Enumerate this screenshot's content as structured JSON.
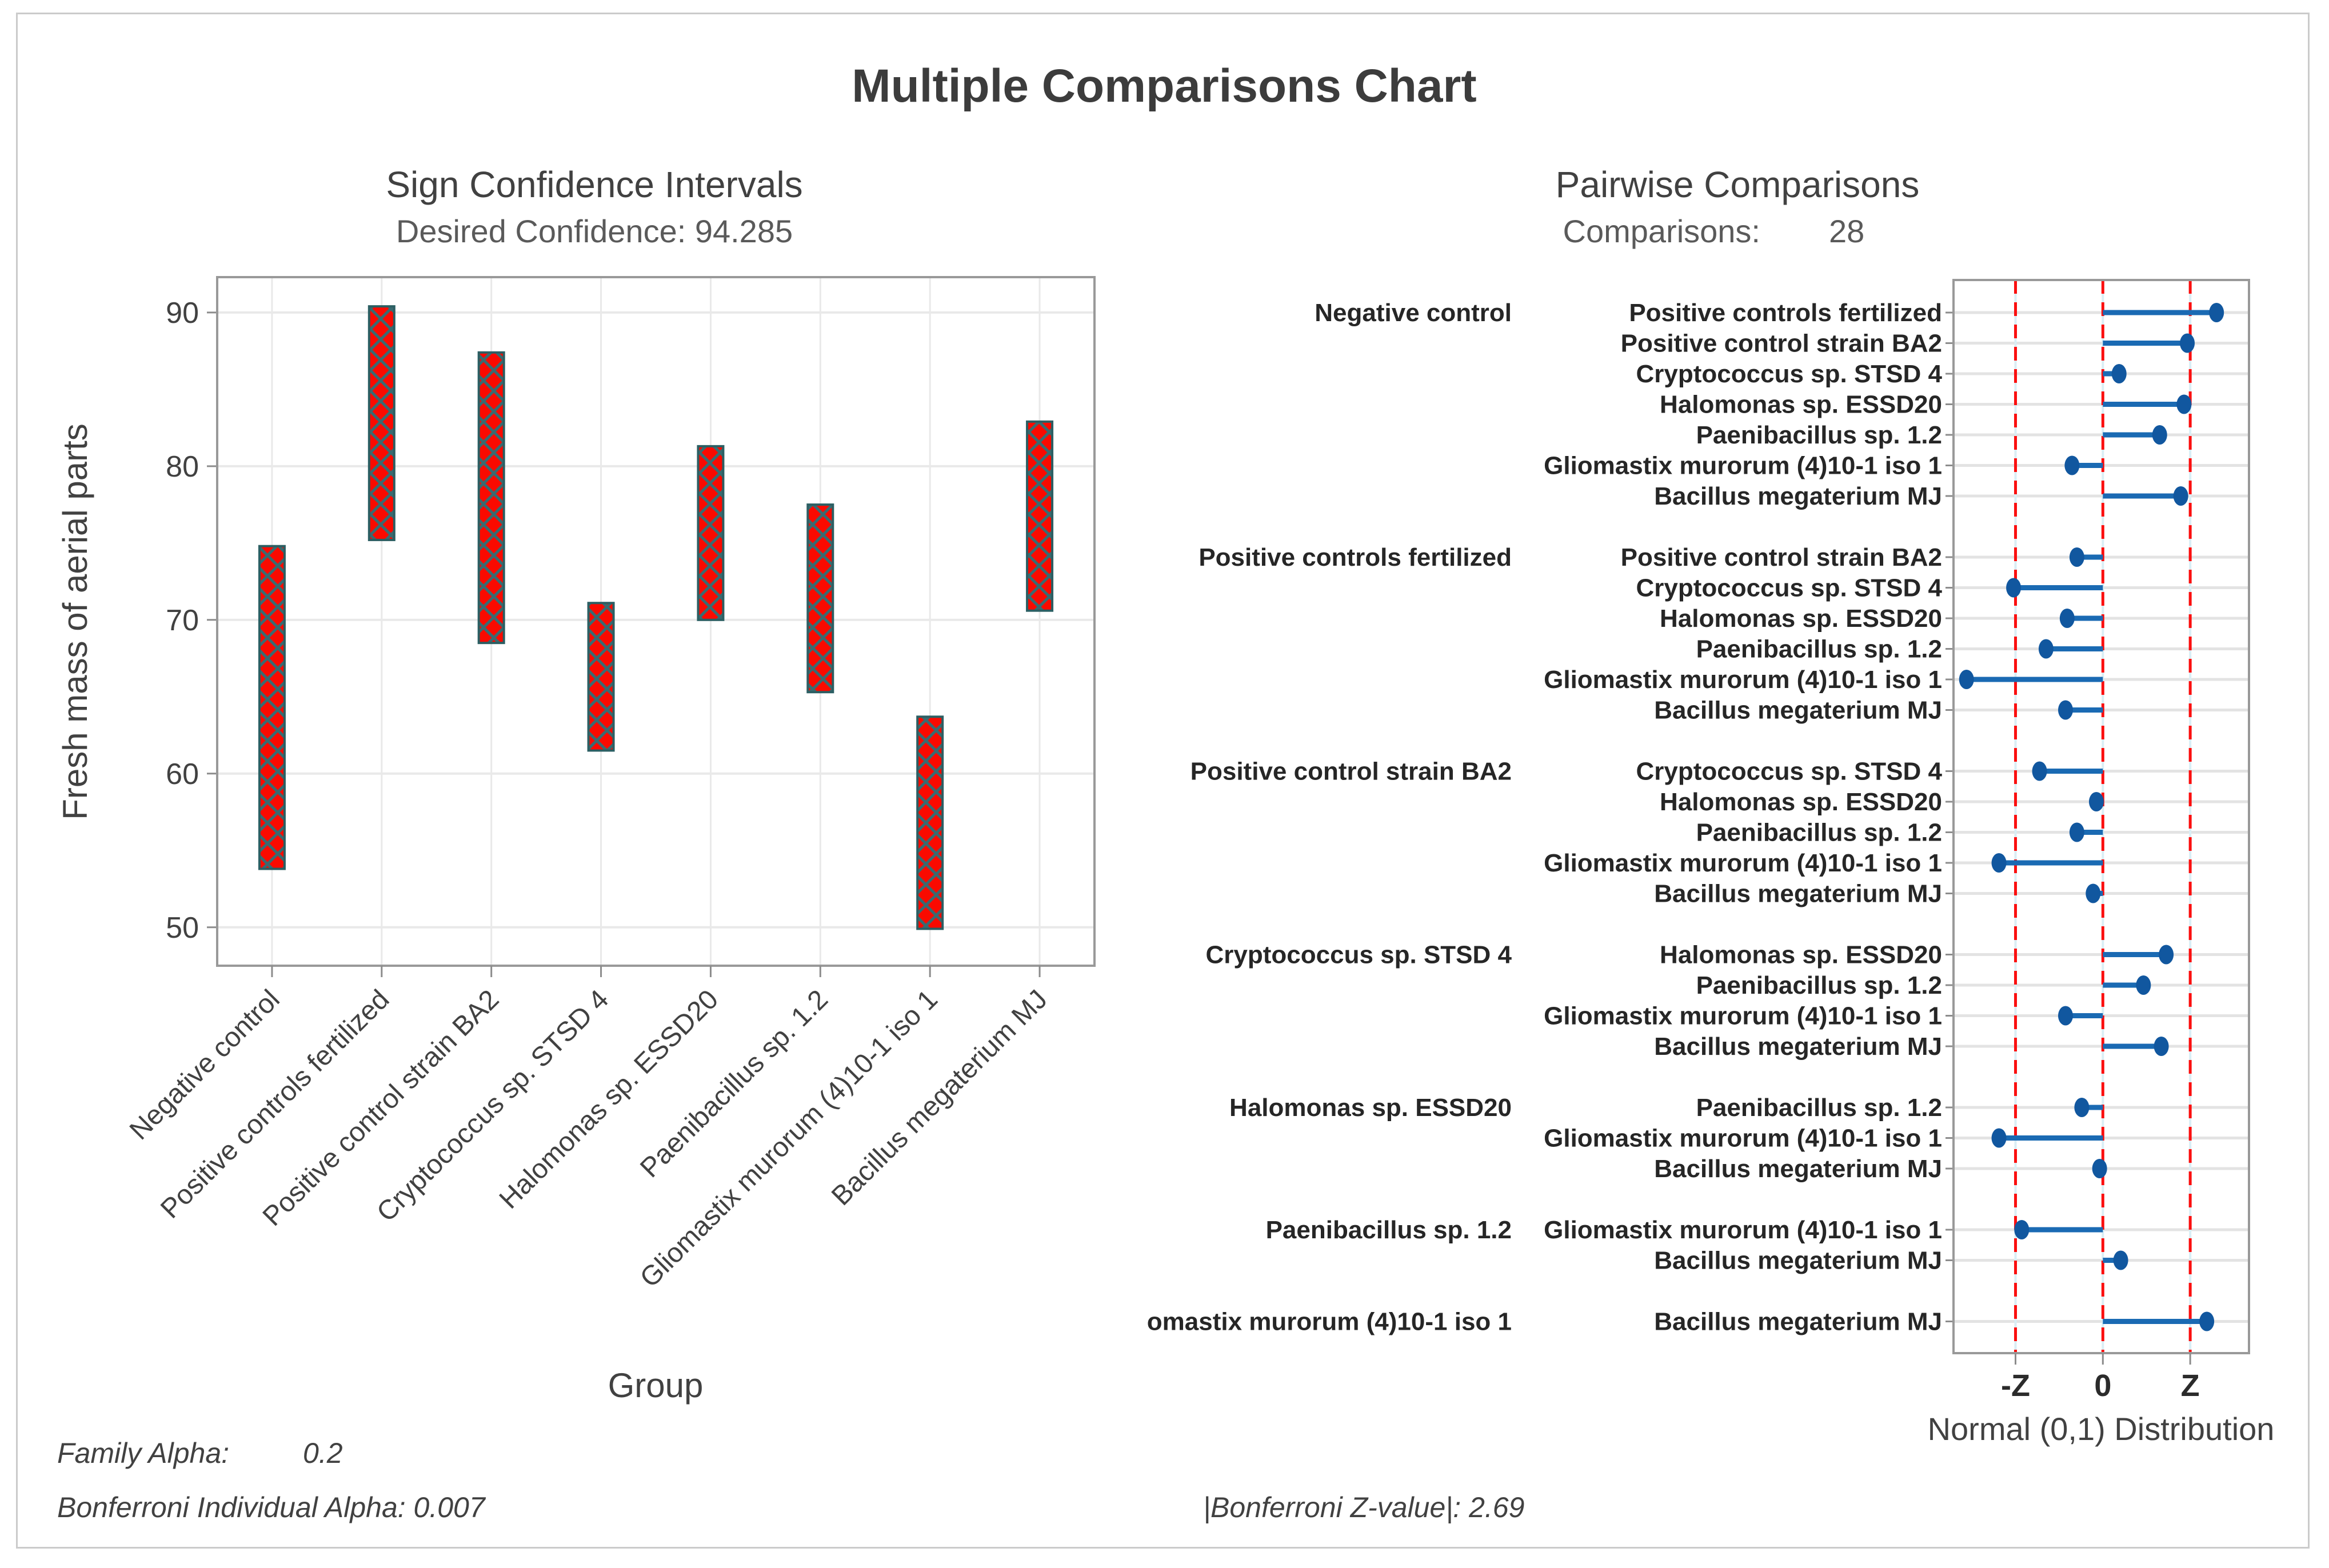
{
  "header": {
    "title": "Multiple Comparisons Chart"
  },
  "left_chart": {
    "title": "Sign Confidence Intervals",
    "subtitle": "Desired Confidence: 94.285",
    "ylabel": "Fresh mass of aerial parts",
    "xlabel": "Group"
  },
  "right_chart": {
    "title": "Pairwise Comparisons",
    "subtitle_label": "Comparisons:",
    "subtitle_value": "28",
    "xlabel": "Normal (0,1) Distribution"
  },
  "footer": {
    "family_alpha_label": "Family Alpha:",
    "family_alpha_value": "0.2",
    "bonferroni_alpha": "Bonferroni Individual Alpha: 0.007",
    "bonferroni_z": "|Bonferroni Z-value|: 2.69"
  },
  "colors": {
    "text": "#414141",
    "tick": "#8c8c8c",
    "frame": "#999999",
    "grid": "#e9e9e9",
    "bar_fill": "#fa0a00",
    "bar_hatch": "#3a6a70",
    "bar_border": "#2c5f63",
    "blue_line": "#1a6ab3",
    "blue_dot": "#11579f",
    "gray_row_line": "#e3e3e3",
    "red_dash": "#fb0f0f",
    "pale_ref": "#d9eef5",
    "row_label": "#262626"
  },
  "chart_data": [
    {
      "type": "bar",
      "subtype": "interval-bars",
      "title": "Sign Confidence Intervals",
      "subtitle": "Desired Confidence: 94.285",
      "xlabel": "Group",
      "ylabel": "Fresh mass of aerial parts",
      "grid": true,
      "ylim": [
        47.5,
        92.3
      ],
      "yticks": [
        50,
        60,
        70,
        80,
        90
      ],
      "categories": [
        "Negative control",
        "Positive controls fertilized",
        "Positive control strain BA2",
        "Cryptococcus sp. STSD 4",
        "Halomonas sp. ESSD20",
        "Paenibacillus sp. 1.2",
        "Gliomastix murorum (4)10-1 iso 1",
        "Bacillus megaterium MJ"
      ],
      "intervals": [
        [
          53.8,
          74.8
        ],
        [
          75.2,
          90.4
        ],
        [
          68.5,
          87.4
        ],
        [
          61.5,
          71.1
        ],
        [
          70.0,
          81.3
        ],
        [
          65.3,
          77.5
        ],
        [
          49.9,
          63.7
        ],
        [
          70.6,
          82.9
        ]
      ]
    },
    {
      "type": "scatter",
      "subtype": "pairwise-z-intervals",
      "title": "Pairwise Comparisons",
      "comparisons_count": 28,
      "xlabel": "Normal (0,1) Distribution",
      "xlim": [
        -4.6,
        4.5
      ],
      "bonferroni_z": 2.69,
      "xtick_labels": [
        "-Z",
        "0",
        "Z"
      ],
      "xtick_values": [
        -2.69,
        0,
        2.69
      ],
      "groups": [
        {
          "name": "Negative control",
          "comparisons": [
            {
              "vs": "Positive controls fertilized",
              "z": 3.5
            },
            {
              "vs": "Positive control strain BA2",
              "z": 2.6
            },
            {
              "vs": "Cryptococcus sp. STSD 4",
              "z": 0.5
            },
            {
              "vs": "Halomonas sp. ESSD20",
              "z": 2.5
            },
            {
              "vs": "Paenibacillus sp. 1.2",
              "z": 1.75
            },
            {
              "vs": "Gliomastix murorum (4)10-1 iso 1",
              "z": -0.95
            },
            {
              "vs": "Bacillus megaterium MJ",
              "z": 2.4
            }
          ]
        },
        {
          "name": "Positive controls fertilized",
          "comparisons": [
            {
              "vs": "Positive control strain BA2",
              "z": -0.8
            },
            {
              "vs": "Cryptococcus sp. STSD 4",
              "z": -2.75
            },
            {
              "vs": "Halomonas sp. ESSD20",
              "z": -1.1
            },
            {
              "vs": "Paenibacillus sp. 1.2",
              "z": -1.75
            },
            {
              "vs": "Gliomastix murorum (4)10-1 iso 1",
              "z": -4.2
            },
            {
              "vs": "Bacillus megaterium MJ",
              "z": -1.15
            }
          ]
        },
        {
          "name": "Positive control strain BA2",
          "comparisons": [
            {
              "vs": "Cryptococcus sp. STSD 4",
              "z": -1.95
            },
            {
              "vs": "Halomonas sp. ESSD20",
              "z": -0.2
            },
            {
              "vs": "Paenibacillus sp. 1.2",
              "z": -0.8
            },
            {
              "vs": "Gliomastix murorum (4)10-1 iso 1",
              "z": -3.2
            },
            {
              "vs": "Bacillus megaterium MJ",
              "z": -0.3
            }
          ]
        },
        {
          "name": "Cryptococcus sp. STSD 4",
          "comparisons": [
            {
              "vs": "Halomonas sp. ESSD20",
              "z": 1.95
            },
            {
              "vs": "Paenibacillus sp. 1.2",
              "z": 1.25
            },
            {
              "vs": "Gliomastix murorum (4)10-1 iso 1",
              "z": -1.15
            },
            {
              "vs": "Bacillus megaterium MJ",
              "z": 1.8
            }
          ]
        },
        {
          "name": "Halomonas sp. ESSD20",
          "comparisons": [
            {
              "vs": "Paenibacillus sp. 1.2",
              "z": -0.65
            },
            {
              "vs": "Gliomastix murorum (4)10-1 iso 1",
              "z": -3.2
            },
            {
              "vs": "Bacillus megaterium MJ",
              "z": -0.1
            }
          ]
        },
        {
          "name": "Paenibacillus sp. 1.2",
          "comparisons": [
            {
              "vs": "Gliomastix murorum (4)10-1 iso 1",
              "z": -2.5
            },
            {
              "vs": "Bacillus megaterium MJ",
              "z": 0.55
            }
          ]
        },
        {
          "name": "omastix murorum (4)10-1 iso 1",
          "comparisons": [
            {
              "vs": "Bacillus megaterium MJ",
              "z": 3.2
            }
          ]
        }
      ]
    }
  ]
}
